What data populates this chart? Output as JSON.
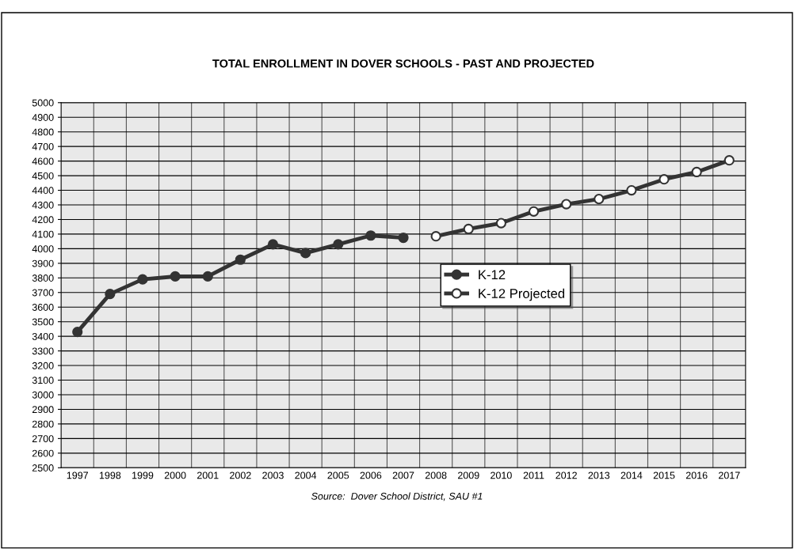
{
  "chart_data": {
    "type": "line",
    "title": "TOTAL ENROLLMENT IN DOVER SCHOOLS - PAST AND PROJECTED",
    "categories": [
      "1997",
      "1998",
      "1999",
      "2000",
      "2001",
      "2002",
      "2003",
      "2004",
      "2005",
      "2006",
      "2007",
      "2008",
      "2009",
      "2010",
      "2011",
      "2012",
      "2013",
      "2014",
      "2015",
      "2016",
      "2017"
    ],
    "series": [
      {
        "name": "K-12",
        "color": "#333333",
        "values": [
          3430,
          3690,
          3790,
          3810,
          3810,
          3925,
          4030,
          3970,
          4030,
          4090,
          4075,
          null,
          null,
          null,
          null,
          null,
          null,
          null,
          null,
          null,
          null
        ]
      },
      {
        "name": "K-12 Projected",
        "color": "#333333",
        "values": [
          null,
          null,
          null,
          null,
          null,
          null,
          null,
          null,
          null,
          null,
          null,
          4085,
          4135,
          4175,
          4255,
          4305,
          4340,
          4400,
          4475,
          4525,
          4605
        ]
      }
    ],
    "ylim": [
      2500,
      5000
    ],
    "yticks": [
      2500,
      2600,
      2700,
      2800,
      2900,
      3000,
      3100,
      3200,
      3300,
      3400,
      3500,
      3600,
      3700,
      3800,
      3900,
      4000,
      4100,
      4200,
      4300,
      4400,
      4500,
      4600,
      4700,
      4800,
      4900,
      5000
    ],
    "grid": true,
    "legend": "right",
    "marker": "circle",
    "line_style": "solid",
    "annotations": [
      "Source:  Dover School District, SAU #1"
    ]
  }
}
